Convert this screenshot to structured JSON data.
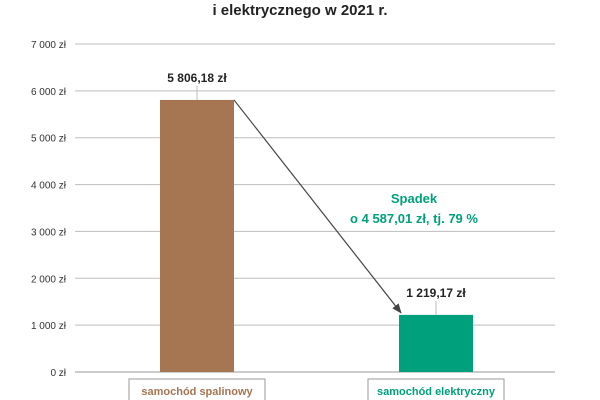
{
  "chart_data": {
    "type": "bar",
    "title_visible_fragment": "i elektrycznego w 2021 r.",
    "categories": [
      "samochód spalinowy",
      "samochód elektryczny"
    ],
    "values": [
      5806.18,
      1219.17
    ],
    "value_labels": [
      "5 806,18 zł",
      "1 219,17 zł"
    ],
    "ylim": [
      0,
      7000
    ],
    "yticks": [
      0,
      1000,
      2000,
      3000,
      4000,
      5000,
      6000,
      7000
    ],
    "ytick_labels": [
      "0 zł",
      "1 000 zł",
      "2 000 zł",
      "3 000 zł",
      "4 000 zł",
      "5 000 zł",
      "6 000 zł",
      "7 000 zł"
    ],
    "grid": true,
    "bar_colors": [
      "#a67552",
      "#00a07d"
    ],
    "annotation": {
      "lines": [
        "Spadek",
        "o 4 587,01 zł, tj. 79 %"
      ],
      "color": "#00a07d"
    }
  }
}
